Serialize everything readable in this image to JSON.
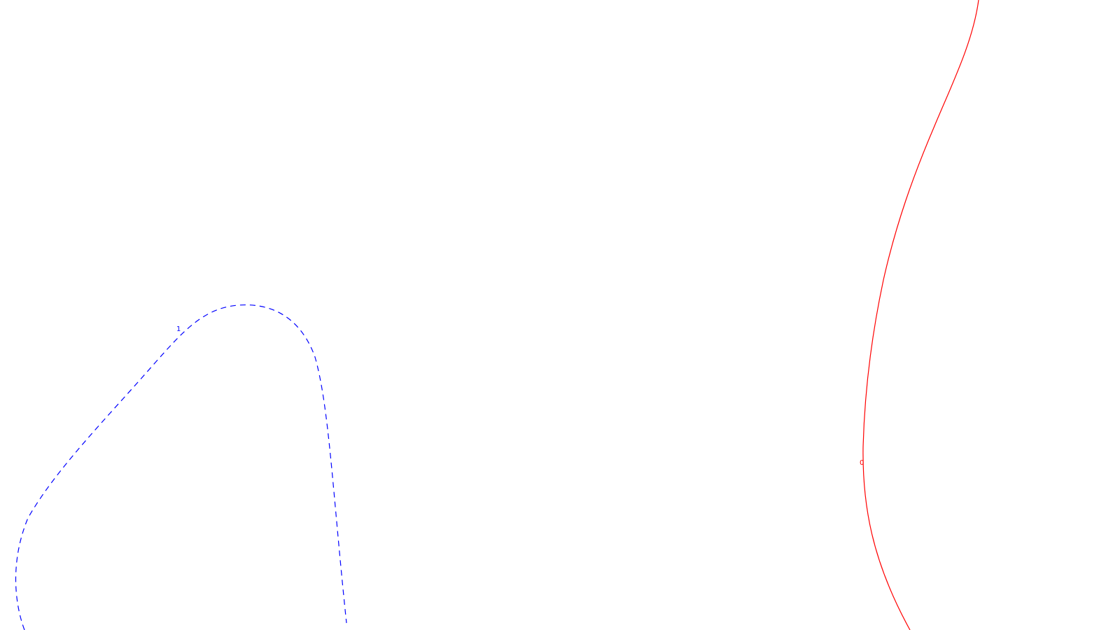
{
  "chart_data": {
    "type": "contour",
    "title": "",
    "xlabel": "",
    "ylabel": "",
    "grid": false,
    "legend": "none",
    "contours": [
      {
        "level_label": "0",
        "color": "#ff0000",
        "dash": "solid"
      },
      {
        "level_label": "1",
        "color": "#0000ff",
        "dash": "dashed"
      }
    ]
  }
}
